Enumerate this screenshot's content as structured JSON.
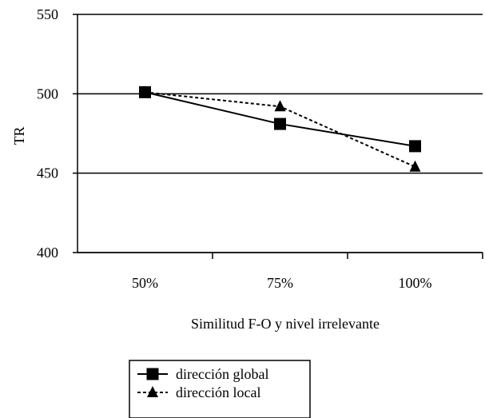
{
  "chart_data": {
    "type": "line",
    "title": "",
    "xlabel": "Similitud F-O y nivel irrelevante",
    "ylabel": "TR",
    "categories": [
      "50%",
      "75%",
      "100%"
    ],
    "ylim": [
      400,
      550
    ],
    "yticks": [
      400,
      450,
      500,
      550
    ],
    "grid": true,
    "legend_position": "bottom",
    "series": [
      {
        "name": "dirección global",
        "values": [
          501,
          481,
          467
        ],
        "color": "#000000",
        "line_style": "solid",
        "marker": "square"
      },
      {
        "name": "dirección local",
        "values": [
          501,
          492,
          454
        ],
        "color": "#000000",
        "line_style": "dashed",
        "marker": "triangle"
      }
    ]
  }
}
